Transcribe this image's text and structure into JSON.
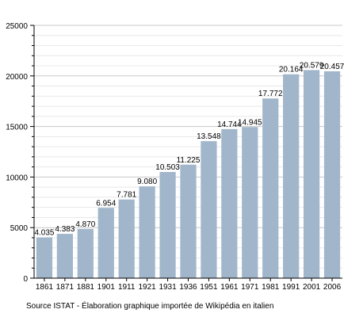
{
  "chart_data": {
    "type": "bar",
    "title": "",
    "xlabel": "",
    "ylabel": "",
    "categories": [
      "1861",
      "1871",
      "1881",
      "1901",
      "1911",
      "1921",
      "1931",
      "1936",
      "1951",
      "1961",
      "1971",
      "1981",
      "1991",
      "2001",
      "2006"
    ],
    "values": [
      4035,
      4383,
      4870,
      6954,
      7781,
      9080,
      10503,
      11225,
      13548,
      14744,
      14945,
      17772,
      20164,
      20579,
      20457
    ],
    "value_labels": [
      "4.035",
      "4.383",
      "4.870",
      "6.954",
      "7.781",
      "9.080",
      "10.503",
      "11.225",
      "13.548",
      "14.744",
      "14.945",
      "17.772",
      "20.164",
      "20.579",
      "20.457"
    ],
    "ylim": [
      0,
      25000
    ],
    "y_ticks": [
      0,
      5000,
      10000,
      15000,
      20000,
      25000
    ],
    "y_tick_labels": [
      "0",
      "5000",
      "10000",
      "15000",
      "20000",
      "25000"
    ],
    "grid": true,
    "legend": "none",
    "bar_color": "#a1b6cb",
    "grid_color": "#c8c8c8",
    "axis_color": "#000000"
  },
  "source_note": "Source ISTAT - Élaboration graphique importée de Wikipédia en italien"
}
